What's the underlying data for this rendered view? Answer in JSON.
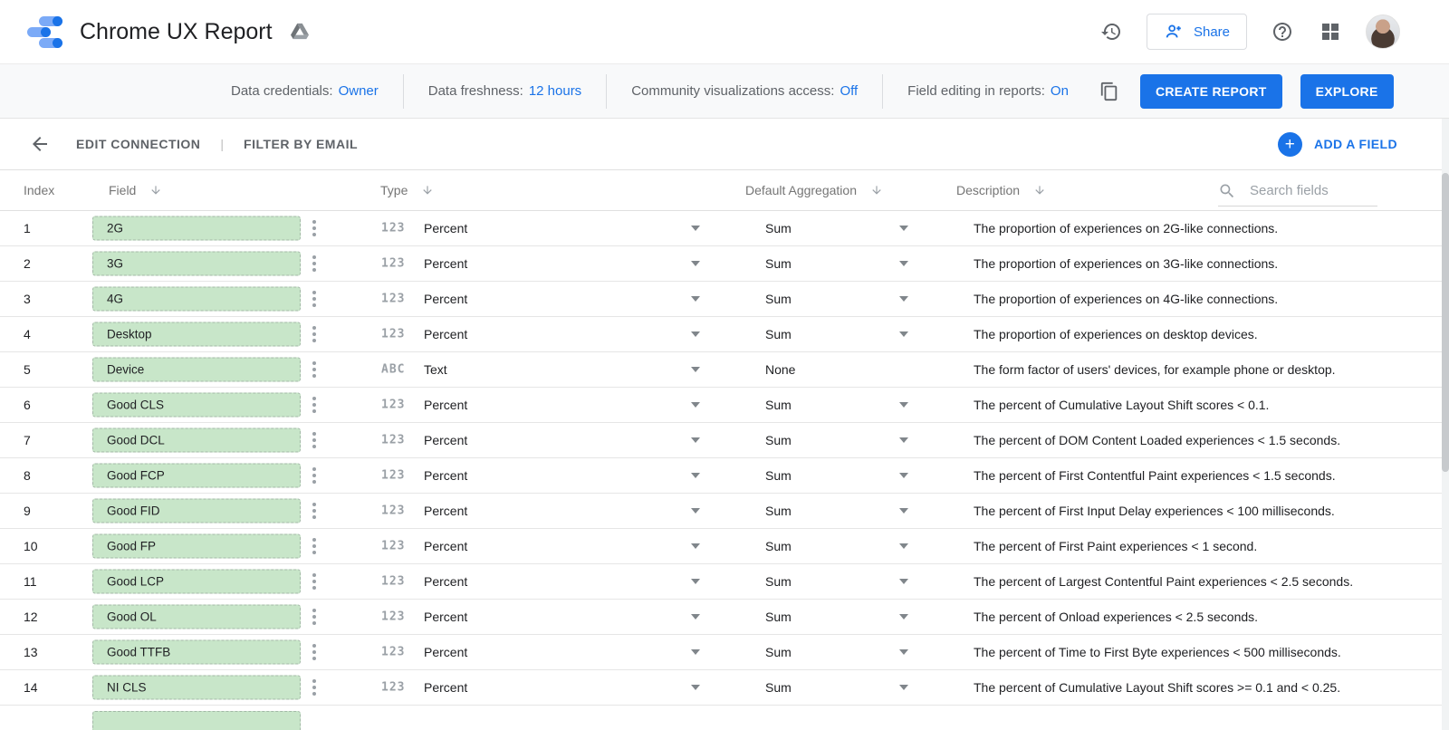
{
  "app_bar": {
    "title": "Chrome UX Report",
    "share_button": "Share"
  },
  "settings_bar": {
    "items": [
      {
        "label": "Data credentials:",
        "value": "Owner"
      },
      {
        "label": "Data freshness:",
        "value": "12 hours"
      },
      {
        "label": "Community visualizations access:",
        "value": "Off"
      },
      {
        "label": "Field editing in reports:",
        "value": "On"
      }
    ],
    "create_report": "CREATE REPORT",
    "explore": "EXPLORE"
  },
  "connection_bar": {
    "edit_connection": "EDIT CONNECTION",
    "separator": "|",
    "filter_by_email": "FILTER BY EMAIL",
    "add_a_field": "ADD A FIELD",
    "plus_glyph": "+"
  },
  "table": {
    "headers": {
      "index": "Index",
      "field": "Field",
      "type": "Type",
      "aggregation": "Default Aggregation",
      "description": "Description"
    },
    "search_placeholder": "Search fields",
    "rows": [
      {
        "index": "1",
        "field": "2G",
        "type_icon": "123",
        "type": "Percent",
        "aggregation": "Sum",
        "agg_dropdown": true,
        "description": "The proportion of experiences on 2G-like connections."
      },
      {
        "index": "2",
        "field": "3G",
        "type_icon": "123",
        "type": "Percent",
        "aggregation": "Sum",
        "agg_dropdown": true,
        "description": "The proportion of experiences on 3G-like connections."
      },
      {
        "index": "3",
        "field": "4G",
        "type_icon": "123",
        "type": "Percent",
        "aggregation": "Sum",
        "agg_dropdown": true,
        "description": "The proportion of experiences on 4G-like connections."
      },
      {
        "index": "4",
        "field": "Desktop",
        "type_icon": "123",
        "type": "Percent",
        "aggregation": "Sum",
        "agg_dropdown": true,
        "description": "The proportion of experiences on desktop devices."
      },
      {
        "index": "5",
        "field": "Device",
        "type_icon": "ABC",
        "type": "Text",
        "aggregation": "None",
        "agg_dropdown": false,
        "description": "The form factor of users' devices, for example phone or desktop."
      },
      {
        "index": "6",
        "field": "Good CLS",
        "type_icon": "123",
        "type": "Percent",
        "aggregation": "Sum",
        "agg_dropdown": true,
        "description": "The percent of Cumulative Layout Shift scores < 0.1."
      },
      {
        "index": "7",
        "field": "Good DCL",
        "type_icon": "123",
        "type": "Percent",
        "aggregation": "Sum",
        "agg_dropdown": true,
        "description": "The percent of DOM Content Loaded experiences < 1.5 seconds."
      },
      {
        "index": "8",
        "field": "Good FCP",
        "type_icon": "123",
        "type": "Percent",
        "aggregation": "Sum",
        "agg_dropdown": true,
        "description": "The percent of First Contentful Paint experiences < 1.5 seconds."
      },
      {
        "index": "9",
        "field": "Good FID",
        "type_icon": "123",
        "type": "Percent",
        "aggregation": "Sum",
        "agg_dropdown": true,
        "description": "The percent of First Input Delay experiences < 100 milliseconds."
      },
      {
        "index": "10",
        "field": "Good FP",
        "type_icon": "123",
        "type": "Percent",
        "aggregation": "Sum",
        "agg_dropdown": true,
        "description": "The percent of First Paint experiences < 1 second."
      },
      {
        "index": "11",
        "field": "Good LCP",
        "type_icon": "123",
        "type": "Percent",
        "aggregation": "Sum",
        "agg_dropdown": true,
        "description": "The percent of Largest Contentful Paint experiences < 2.5 seconds."
      },
      {
        "index": "12",
        "field": "Good OL",
        "type_icon": "123",
        "type": "Percent",
        "aggregation": "Sum",
        "agg_dropdown": true,
        "description": "The percent of Onload experiences < 2.5 seconds."
      },
      {
        "index": "13",
        "field": "Good TTFB",
        "type_icon": "123",
        "type": "Percent",
        "aggregation": "Sum",
        "agg_dropdown": true,
        "description": "The percent of Time to First Byte experiences < 500 milliseconds."
      },
      {
        "index": "14",
        "field": "NI CLS",
        "type_icon": "123",
        "type": "Percent",
        "aggregation": "Sum",
        "agg_dropdown": true,
        "description": "The percent of Cumulative Layout Shift scores >= 0.1 and < 0.25."
      }
    ],
    "partial_row_visible": true
  },
  "colors": {
    "accent_blue": "#1a73e8",
    "field_chip_green": "#c8e6c9",
    "settings_bar_gray": "#f8f9fa"
  }
}
